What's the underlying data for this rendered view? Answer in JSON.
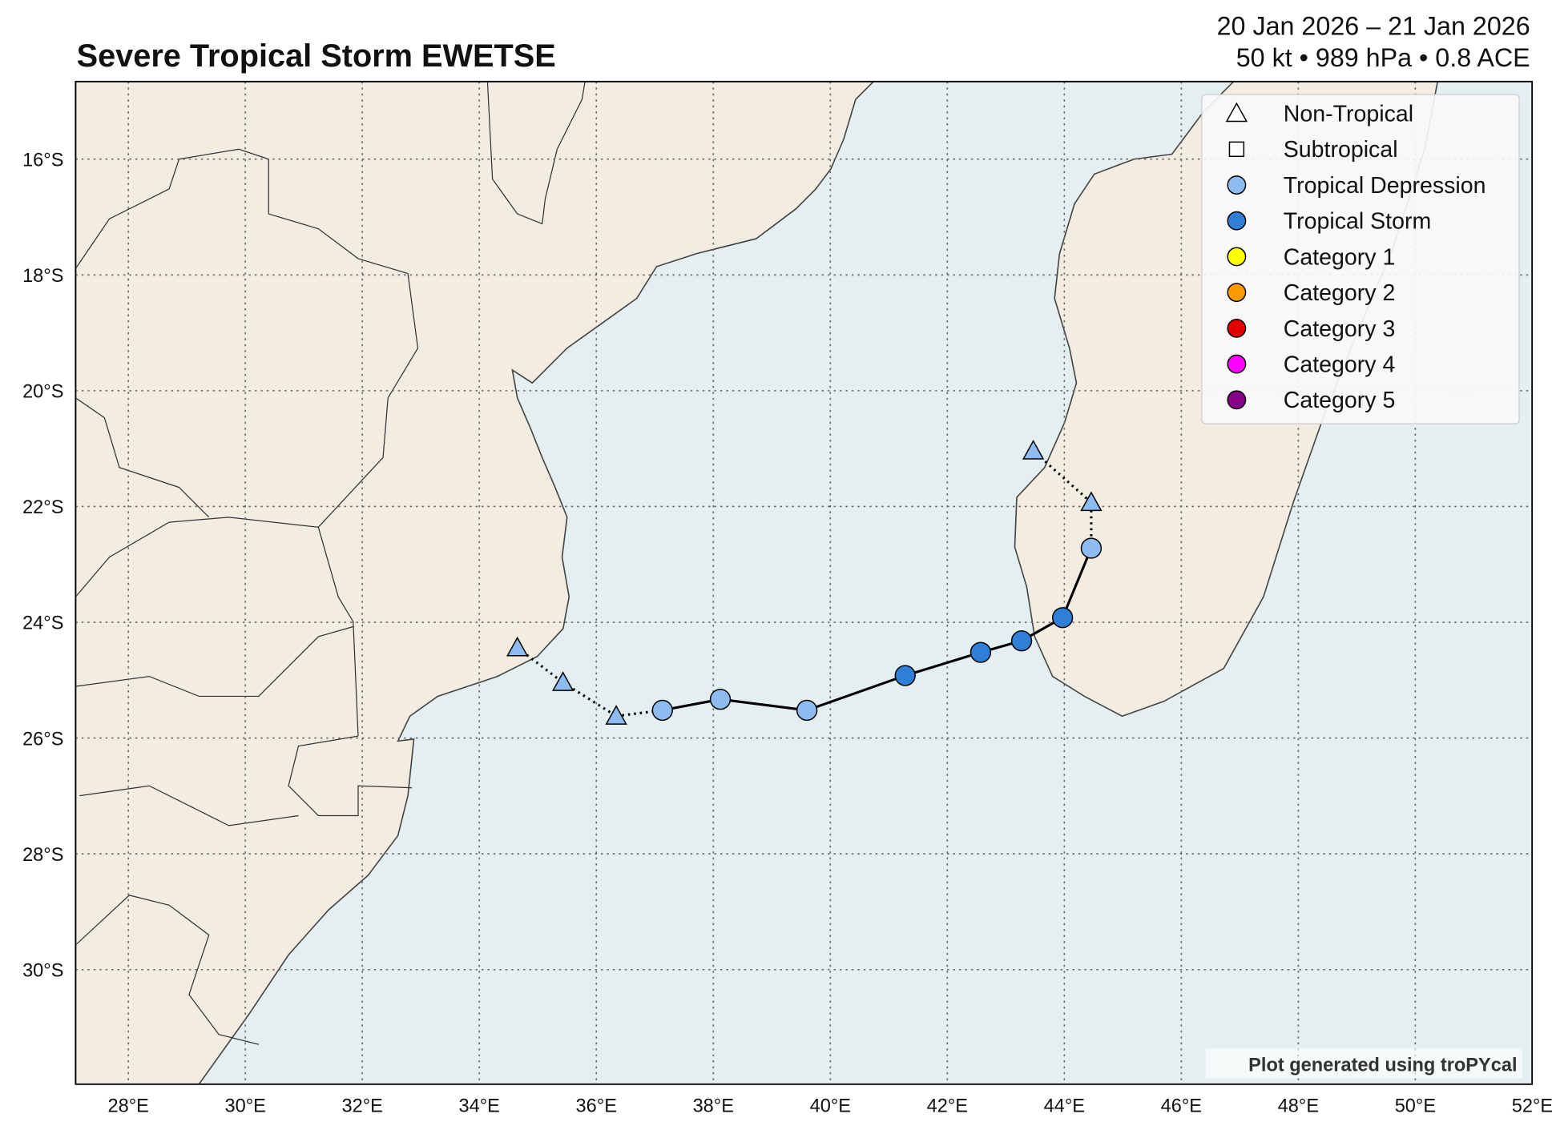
{
  "title": "Severe Tropical Storm EWETSE",
  "subtitle_line1": "20 Jan 2026 – 21 Jan 2026",
  "subtitle_line2": "50 kt • 989 hPa • 0.8 ACE",
  "credit": "Plot generated using troPYcal",
  "colors": {
    "land": "#f3ece1",
    "ocean": "#e4eff1",
    "coast": "#444444"
  },
  "chart_data": {
    "type": "map-track",
    "lon_range": [
      27.1,
      52
    ],
    "lat_range": [
      -32.0,
      -14.7
    ],
    "grid": true,
    "x_ticks": [
      "28°E",
      "30°E",
      "32°E",
      "34°E",
      "36°E",
      "38°E",
      "40°E",
      "42°E",
      "44°E",
      "46°E",
      "48°E",
      "50°E",
      "52°E"
    ],
    "y_ticks": [
      "16°S",
      "18°S",
      "20°S",
      "22°S",
      "24°S",
      "26°S",
      "28°S",
      "30°S"
    ],
    "legend_position": "top-right",
    "legend": [
      {
        "label": "Non-Tropical",
        "marker": "triangle",
        "color": "#ffffff"
      },
      {
        "label": "Subtropical",
        "marker": "square",
        "color": "#ffffff"
      },
      {
        "label": "Tropical Depression",
        "marker": "circle",
        "color": "#8fbcf0"
      },
      {
        "label": "Tropical Storm",
        "marker": "circle",
        "color": "#2f7fd6"
      },
      {
        "label": "Category 1",
        "marker": "circle",
        "color": "#ffff00"
      },
      {
        "label": "Category 2",
        "marker": "circle",
        "color": "#ff9900"
      },
      {
        "label": "Category 3",
        "marker": "circle",
        "color": "#e00000"
      },
      {
        "label": "Category 4",
        "marker": "circle",
        "color": "#ff00ff"
      },
      {
        "label": "Category 5",
        "marker": "circle",
        "color": "#880088"
      }
    ],
    "track": [
      {
        "lon": 34.65,
        "lat": -24.44,
        "type": "Non-Tropical",
        "color": "#8fbcf0"
      },
      {
        "lon": 35.43,
        "lat": -25.04,
        "type": "Non-Tropical",
        "color": "#8fbcf0"
      },
      {
        "lon": 36.34,
        "lat": -25.62,
        "type": "Non-Tropical",
        "color": "#8fbcf0"
      },
      {
        "lon": 37.13,
        "lat": -25.52,
        "type": "Tropical Depression",
        "color": "#8fbcf0"
      },
      {
        "lon": 38.12,
        "lat": -25.33,
        "type": "Tropical Depression",
        "color": "#8fbcf0"
      },
      {
        "lon": 39.6,
        "lat": -25.52,
        "type": "Tropical Depression",
        "color": "#8fbcf0"
      },
      {
        "lon": 41.28,
        "lat": -24.92,
        "type": "Tropical Storm",
        "color": "#2f7fd6"
      },
      {
        "lon": 42.57,
        "lat": -24.52,
        "type": "Tropical Storm",
        "color": "#2f7fd6"
      },
      {
        "lon": 43.27,
        "lat": -24.32,
        "type": "Tropical Storm",
        "color": "#2f7fd6"
      },
      {
        "lon": 43.97,
        "lat": -23.92,
        "type": "Tropical Storm",
        "color": "#2f7fd6"
      },
      {
        "lon": 44.46,
        "lat": -22.72,
        "type": "Tropical Depression",
        "color": "#8fbcf0"
      },
      {
        "lon": 44.46,
        "lat": -21.93,
        "type": "Non-Tropical",
        "color": "#8fbcf0"
      },
      {
        "lon": 43.47,
        "lat": -21.04,
        "type": "Non-Tropical",
        "color": "#8fbcf0"
      }
    ]
  }
}
